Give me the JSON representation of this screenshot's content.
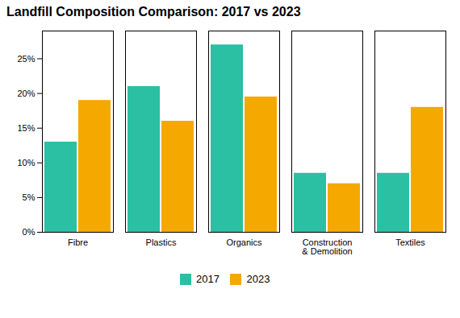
{
  "chart_data": {
    "type": "bar",
    "title": "Landfill Composition Comparison: 2017 vs 2023",
    "categories": [
      "Fibre",
      "Plastics",
      "Organics",
      "Construction\n& Demolition",
      "Textiles"
    ],
    "series": [
      {
        "name": "2017",
        "color": "#2BBFA4",
        "values": [
          0.13,
          0.21,
          0.27,
          0.085,
          0.085
        ]
      },
      {
        "name": "2023",
        "color": "#F5A800",
        "values": [
          0.19,
          0.16,
          0.195,
          0.07,
          0.18
        ]
      }
    ],
    "ylim": [
      0,
      0.29
    ],
    "yticks": [
      {
        "value": 0.0,
        "label": "0%"
      },
      {
        "value": 0.05,
        "label": "5%"
      },
      {
        "value": 0.1,
        "label": "10%"
      },
      {
        "value": 0.15,
        "label": "15%"
      },
      {
        "value": 0.2,
        "label": "20%"
      },
      {
        "value": 0.25,
        "label": "25%"
      }
    ],
    "grid": false,
    "legend": "bottom"
  }
}
